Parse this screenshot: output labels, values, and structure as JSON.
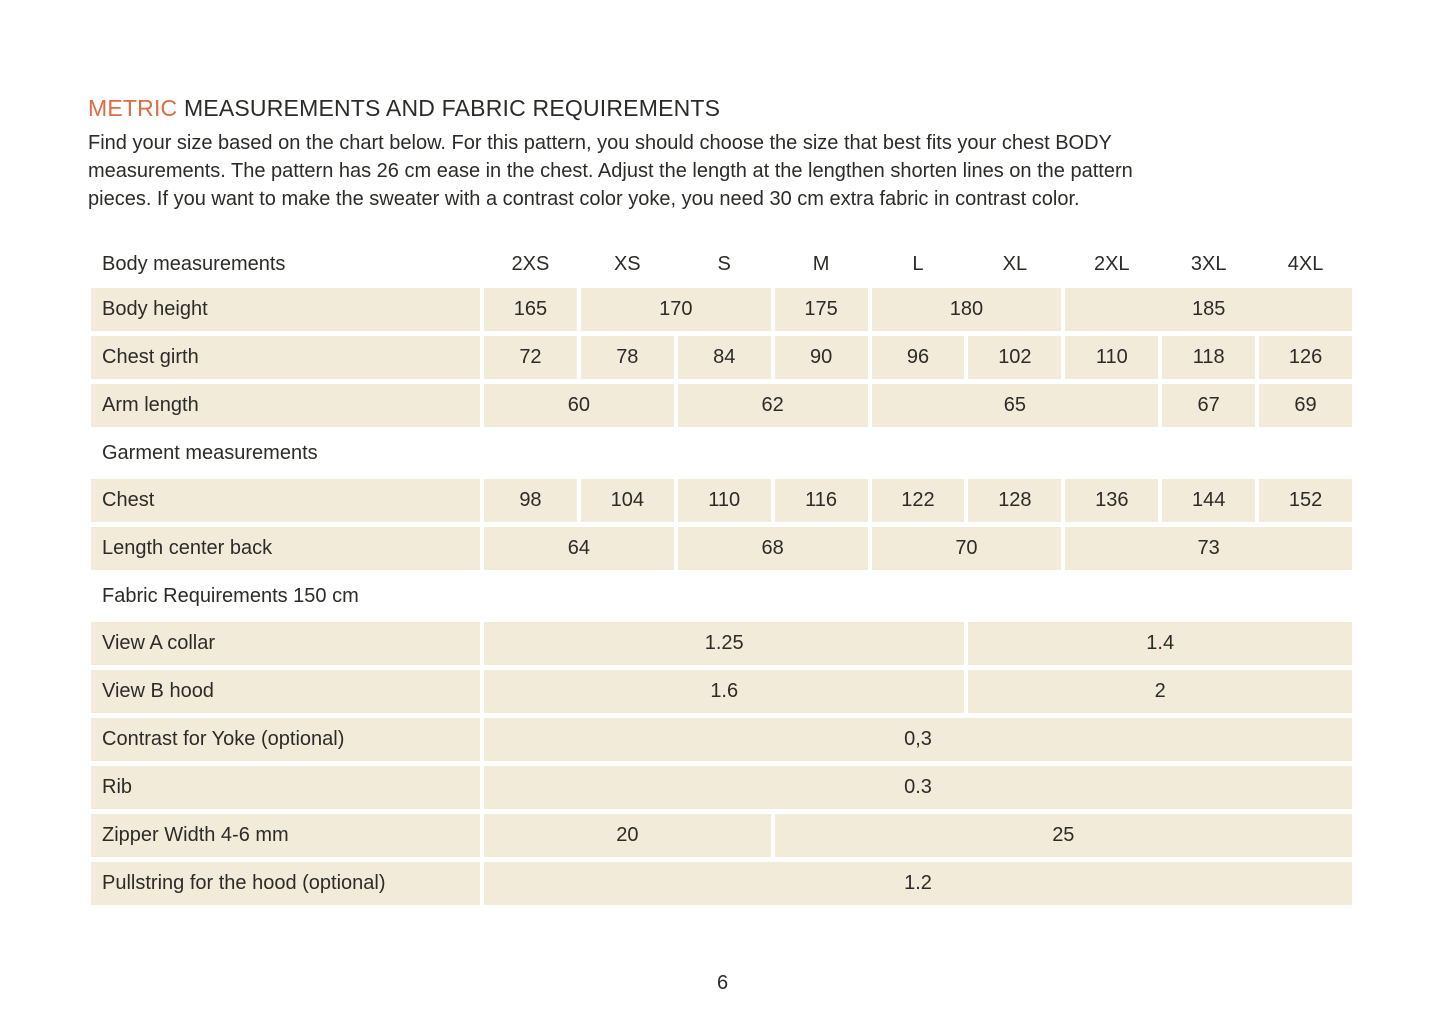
{
  "page": {
    "title_accent": "METRIC",
    "title_rest": " MEASUREMENTS AND FABRIC REQUIREMENTS",
    "intro_lines": [
      "Find your size based on the chart below. For this pattern, you should choose the size that best fits your chest BODY",
      "measurements. The pattern has 26 cm ease in the chest. Adjust the length at the lengthen shorten lines on the pattern",
      "pieces. If you want to make the sweater with a contrast color yoke, you need 30 cm extra fabric in contrast color."
    ],
    "page_number": "6"
  },
  "colors": {
    "accent_orange": "#dd6c41",
    "cell_beige": "#f2ebda",
    "text_dark": "#2d2b28",
    "background": "#ffffff"
  },
  "table": {
    "header_label": "Body measurements",
    "sizes": [
      "2XS",
      "XS",
      "S",
      "M",
      "L",
      "XL",
      "2XL",
      "3XL",
      "4XL"
    ],
    "rows": [
      {
        "type": "data",
        "label": "Body height",
        "cells": [
          {
            "span": 1,
            "value": "165"
          },
          {
            "span": 2,
            "value": "170"
          },
          {
            "span": 1,
            "value": "175"
          },
          {
            "span": 2,
            "value": "180"
          },
          {
            "span": 3,
            "value": "185"
          }
        ]
      },
      {
        "type": "data",
        "label": "Chest girth",
        "cells": [
          {
            "span": 1,
            "value": "72"
          },
          {
            "span": 1,
            "value": "78"
          },
          {
            "span": 1,
            "value": "84"
          },
          {
            "span": 1,
            "value": "90"
          },
          {
            "span": 1,
            "value": "96"
          },
          {
            "span": 1,
            "value": "102"
          },
          {
            "span": 1,
            "value": "110"
          },
          {
            "span": 1,
            "value": "118"
          },
          {
            "span": 1,
            "value": "126"
          }
        ]
      },
      {
        "type": "data",
        "label": "Arm length",
        "cells": [
          {
            "span": 2,
            "value": "60"
          },
          {
            "span": 2,
            "value": "62"
          },
          {
            "span": 3,
            "value": "65"
          },
          {
            "span": 1,
            "value": "67"
          },
          {
            "span": 1,
            "value": "69"
          }
        ]
      },
      {
        "type": "section",
        "label": "Garment measurements"
      },
      {
        "type": "data",
        "label": "Chest",
        "cells": [
          {
            "span": 1,
            "value": "98"
          },
          {
            "span": 1,
            "value": "104"
          },
          {
            "span": 1,
            "value": "110"
          },
          {
            "span": 1,
            "value": "116"
          },
          {
            "span": 1,
            "value": "122"
          },
          {
            "span": 1,
            "value": "128"
          },
          {
            "span": 1,
            "value": "136"
          },
          {
            "span": 1,
            "value": "144"
          },
          {
            "span": 1,
            "value": "152"
          }
        ]
      },
      {
        "type": "data",
        "label": "Length center back",
        "cells": [
          {
            "span": 2,
            "value": "64"
          },
          {
            "span": 2,
            "value": "68"
          },
          {
            "span": 2,
            "value": "70"
          },
          {
            "span": 3,
            "value": "73"
          }
        ]
      },
      {
        "type": "section",
        "label": "Fabric Requirements 150 cm"
      },
      {
        "type": "data",
        "label": "View A collar",
        "cells": [
          {
            "span": 5,
            "value": "1.25"
          },
          {
            "span": 4,
            "value": "1.4"
          }
        ]
      },
      {
        "type": "data",
        "label": "View B hood",
        "cells": [
          {
            "span": 5,
            "value": "1.6"
          },
          {
            "span": 4,
            "value": "2"
          }
        ]
      },
      {
        "type": "data",
        "label": "Contrast for Yoke (optional)",
        "cells": [
          {
            "span": 9,
            "value": "0,3"
          }
        ]
      },
      {
        "type": "data",
        "label": "Rib",
        "cells": [
          {
            "span": 9,
            "value": "0.3"
          }
        ]
      },
      {
        "type": "data",
        "label": "Zipper Width 4-6 mm",
        "cells": [
          {
            "span": 3,
            "value": "20"
          },
          {
            "span": 6,
            "value": "25"
          }
        ]
      },
      {
        "type": "data",
        "label": "Pullstring for the hood (optional)",
        "cells": [
          {
            "span": 9,
            "value": "1.2"
          }
        ]
      }
    ]
  }
}
